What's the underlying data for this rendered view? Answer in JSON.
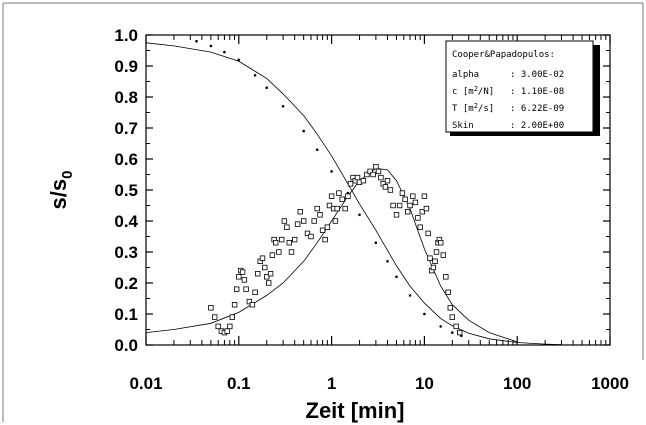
{
  "chart_data": {
    "type": "scatter",
    "title": "",
    "xlabel": "Zeit [min]",
    "ylabel": "s/s0",
    "ylabel_main": "s/s",
    "ylabel_sub": "0",
    "x_scale": "log",
    "xlim": [
      0.01,
      1000
    ],
    "ylim": [
      0,
      1
    ],
    "grid": false,
    "legend_position": "top-right",
    "x_ticks": [
      "0.01",
      "0.1",
      "1",
      "10",
      "100",
      "1000"
    ],
    "y_ticks": [
      "0.0",
      "0.1",
      "0.2",
      "0.3",
      "0.4",
      "0.5",
      "0.6",
      "0.7",
      "0.8",
      "0.9",
      "1.0"
    ],
    "legend": {
      "title": "Cooper&Papadopulos:",
      "rows": [
        {
          "name": "alpha",
          "unit_pre": "",
          "unit_sup": "",
          "unit_post": "",
          "value": ": 3.00E-02"
        },
        {
          "name": "c",
          "unit_pre": "[m",
          "unit_sup": "2",
          "unit_post": "/N]",
          "value": ": 1.10E-08"
        },
        {
          "name": "T",
          "unit_pre": "[m",
          "unit_sup": "2",
          "unit_post": "/s]",
          "value": ": 6.22E-09"
        },
        {
          "name": "Skin",
          "unit_pre": "",
          "unit_sup": "",
          "unit_post": "",
          "value": ": 2.00E+00"
        }
      ]
    },
    "series": [
      {
        "kind": "model_curve",
        "style": "line",
        "x": [
          0.01,
          0.02,
          0.05,
          0.1,
          0.2,
          0.3,
          0.5,
          0.7,
          1,
          1.5,
          2,
          3,
          5,
          7,
          10,
          15,
          20,
          30,
          50,
          100,
          200,
          300
        ],
        "y": [
          0.975,
          0.965,
          0.945,
          0.915,
          0.86,
          0.81,
          0.74,
          0.68,
          0.61,
          0.52,
          0.455,
          0.37,
          0.255,
          0.19,
          0.135,
          0.085,
          0.062,
          0.038,
          0.02,
          0.008,
          0.003,
          0.001
        ]
      },
      {
        "kind": "model_curve",
        "style": "line",
        "x": [
          0.01,
          0.02,
          0.05,
          0.1,
          0.2,
          0.3,
          0.5,
          0.7,
          1,
          1.5,
          2,
          3,
          4,
          5,
          7,
          10,
          15,
          20,
          30,
          50,
          100
        ],
        "y": [
          0.04,
          0.05,
          0.07,
          0.105,
          0.16,
          0.2,
          0.27,
          0.33,
          0.4,
          0.48,
          0.53,
          0.57,
          0.565,
          0.53,
          0.44,
          0.31,
          0.19,
          0.13,
          0.08,
          0.04,
          0.01
        ]
      },
      {
        "kind": "normalized_drawdown",
        "style": "dots",
        "x": [
          0.035,
          0.05,
          0.07,
          0.1,
          0.15,
          0.2,
          0.3,
          0.5,
          0.7,
          1,
          1.5,
          2,
          3,
          4,
          5,
          7,
          10,
          15,
          20,
          25
        ],
        "y": [
          0.98,
          0.965,
          0.945,
          0.92,
          0.87,
          0.83,
          0.77,
          0.69,
          0.63,
          0.56,
          0.49,
          0.42,
          0.33,
          0.27,
          0.22,
          0.16,
          0.1,
          0.06,
          0.04,
          0.03
        ]
      },
      {
        "kind": "measured_derivative",
        "style": "squares",
        "x": [
          0.05,
          0.055,
          0.06,
          0.065,
          0.07,
          0.075,
          0.08,
          0.085,
          0.09,
          0.095,
          0.1,
          0.105,
          0.11,
          0.115,
          0.12,
          0.13,
          0.14,
          0.15,
          0.16,
          0.17,
          0.18,
          0.19,
          0.2,
          0.21,
          0.22,
          0.23,
          0.24,
          0.25,
          0.27,
          0.29,
          0.31,
          0.33,
          0.35,
          0.37,
          0.4,
          0.43,
          0.46,
          0.5,
          0.55,
          0.6,
          0.65,
          0.7,
          0.75,
          0.8,
          0.85,
          0.9,
          0.95,
          1.0,
          1.05,
          1.1,
          1.15,
          1.2,
          1.3,
          1.4,
          1.5,
          1.6,
          1.7,
          1.8,
          1.9,
          2.0,
          2.2,
          2.4,
          2.6,
          2.8,
          3.0,
          3.2,
          3.4,
          3.6,
          3.8,
          4.0,
          4.3,
          4.6,
          5.0,
          5.4,
          5.8,
          6.2,
          6.6,
          7.0,
          7.5,
          8.0,
          8.5,
          9.0,
          9.5,
          10,
          10.5,
          11,
          11.5,
          12,
          12.5,
          13,
          13.5,
          14,
          14.5,
          15,
          16,
          17,
          18,
          19,
          20,
          22,
          24
        ],
        "y": [
          0.12,
          0.09,
          0.06,
          0.045,
          0.04,
          0.045,
          0.06,
          0.09,
          0.13,
          0.18,
          0.22,
          0.24,
          0.235,
          0.21,
          0.18,
          0.14,
          0.13,
          0.17,
          0.23,
          0.27,
          0.28,
          0.25,
          0.22,
          0.2,
          0.23,
          0.29,
          0.34,
          0.33,
          0.3,
          0.34,
          0.4,
          0.38,
          0.33,
          0.3,
          0.34,
          0.39,
          0.43,
          0.4,
          0.36,
          0.35,
          0.4,
          0.44,
          0.42,
          0.37,
          0.34,
          0.38,
          0.45,
          0.48,
          0.44,
          0.4,
          0.44,
          0.49,
          0.47,
          0.44,
          0.48,
          0.52,
          0.54,
          0.53,
          0.54,
          0.525,
          0.53,
          0.55,
          0.56,
          0.55,
          0.575,
          0.56,
          0.54,
          0.52,
          0.51,
          0.53,
          0.5,
          0.45,
          0.42,
          0.45,
          0.49,
          0.47,
          0.43,
          0.45,
          0.48,
          0.46,
          0.41,
          0.38,
          0.43,
          0.48,
          0.44,
          0.36,
          0.28,
          0.24,
          0.25,
          0.27,
          0.3,
          0.33,
          0.34,
          0.33,
          0.29,
          0.22,
          0.17,
          0.12,
          0.09,
          0.06,
          0.04
        ]
      }
    ]
  }
}
